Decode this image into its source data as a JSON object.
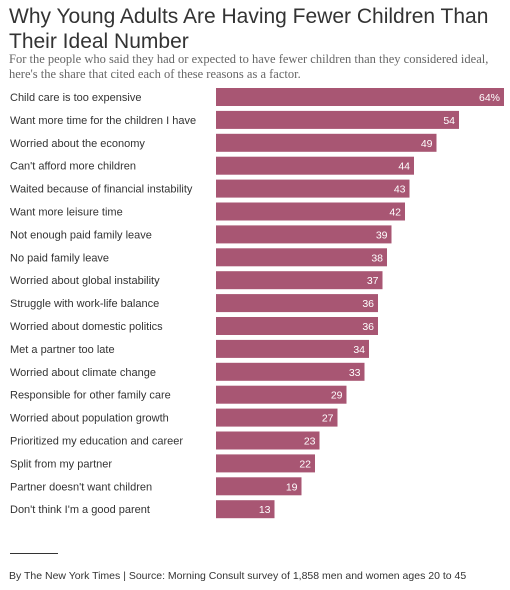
{
  "title": "Why Young Adults Are Having Fewer Children Than Their Ideal Number",
  "subtitle": "For the people who said they had or expected to have fewer children than they considered ideal, here's the share that cited each of these reasons as a factor.",
  "footer": "By The New York Times | Source: Morning Consult survey of 1,858 men and women ages 20 to 45",
  "colors": {
    "bar": "#a85673"
  },
  "chart_data": {
    "type": "bar",
    "orientation": "horizontal",
    "title": "Why Young Adults Are Having Fewer Children Than Their Ideal Number",
    "categories": [
      "Child care is too expensive",
      "Want more time for the children I have",
      "Worried about the economy",
      "Can't afford more children",
      "Waited because of financial instability",
      "Want more leisure time",
      "Not enough paid family leave",
      "No paid family leave",
      "Worried about global instability",
      "Struggle with work-life balance",
      "Worried about domestic politics",
      "Met a partner too late",
      "Worried about climate change",
      "Responsible for other family care",
      "Worried about population growth",
      "Prioritized my education and career",
      "Split from my partner",
      "Partner doesn't want children",
      "Don't think I'm a good parent"
    ],
    "values": [
      64,
      54,
      49,
      44,
      43,
      42,
      39,
      38,
      37,
      36,
      36,
      34,
      33,
      29,
      27,
      23,
      22,
      19,
      13
    ],
    "value_labels": [
      "64%",
      "54",
      "49",
      "44",
      "43",
      "42",
      "39",
      "38",
      "37",
      "36",
      "36",
      "34",
      "33",
      "29",
      "27",
      "23",
      "22",
      "19",
      "13"
    ],
    "xlim": [
      0,
      64
    ],
    "grid": false
  }
}
